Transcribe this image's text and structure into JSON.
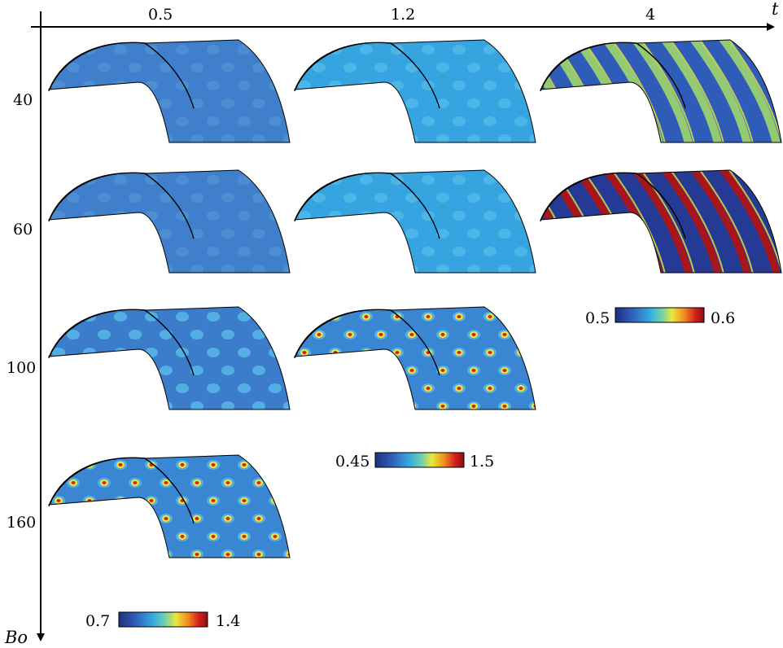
{
  "axes": {
    "horizontal_label": "t",
    "vertical_label": "Bo",
    "columns": [
      "0.5",
      "1.2",
      "4"
    ],
    "rows": [
      "40",
      "60",
      "100",
      "160"
    ]
  },
  "panels": [
    {
      "row": 0,
      "col": 0,
      "pattern": "faint-spots",
      "level": 0.15
    },
    {
      "row": 0,
      "col": 1,
      "pattern": "faint-spots",
      "level": 0.32
    },
    {
      "row": 0,
      "col": 2,
      "pattern": "stripes-yellow",
      "level": 0.7
    },
    {
      "row": 1,
      "col": 0,
      "pattern": "faint-spots",
      "level": 0.18
    },
    {
      "row": 1,
      "col": 1,
      "pattern": "faint-spots",
      "level": 0.35
    },
    {
      "row": 1,
      "col": 2,
      "pattern": "stripes-red",
      "level": 1.0
    },
    {
      "row": 2,
      "col": 0,
      "pattern": "spots",
      "level": 0.3
    },
    {
      "row": 2,
      "col": 1,
      "pattern": "spots-hot",
      "level": 0.9
    },
    {
      "row": 3,
      "col": 0,
      "pattern": "spots-hot",
      "level": 0.85
    }
  ],
  "colorbars": [
    {
      "min": "0.5",
      "max": "0.6"
    },
    {
      "min": "0.45",
      "max": "1.5"
    },
    {
      "min": "0.7",
      "max": "1.4"
    }
  ],
  "colormap": [
    "#1f2f7e",
    "#2f5cb8",
    "#33a8e0",
    "#6fd0b0",
    "#e8e83a",
    "#f28a1c",
    "#d61e1e",
    "#8c0f0f"
  ]
}
